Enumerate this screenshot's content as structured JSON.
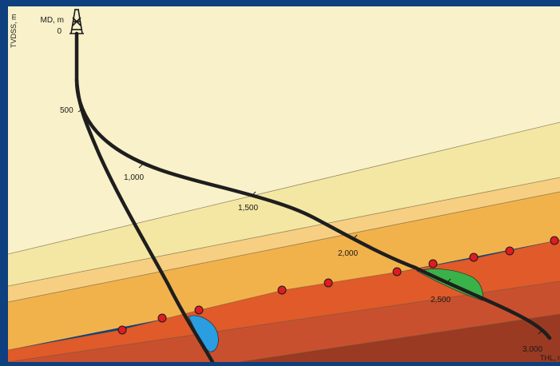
{
  "diagram": {
    "axis_label_vertical": "TVDSS, m",
    "axis_label_md": "MD, m",
    "md_start": "0",
    "depth_marks": [
      "500",
      "1,000",
      "1,500",
      "2,000",
      "2,500",
      "3,000"
    ],
    "axis_label_horizontal": "THL, m",
    "colors": {
      "frame": "#0e3f7e",
      "layer_top": "#f8f1c9",
      "layer_2": "#f4e7a4",
      "layer_3": "#f6cf82",
      "layer_4": "#f2b24b",
      "reservoir": "#e05a2a",
      "layer_6": "#c9502e",
      "layer_7": "#9a3a22",
      "well_path": "#1e1e1e",
      "marker": "#e01b22",
      "pocket_blue": "#2a9ee0",
      "pocket_green": "#39b24a"
    },
    "icons": [
      "derrick-icon"
    ]
  }
}
